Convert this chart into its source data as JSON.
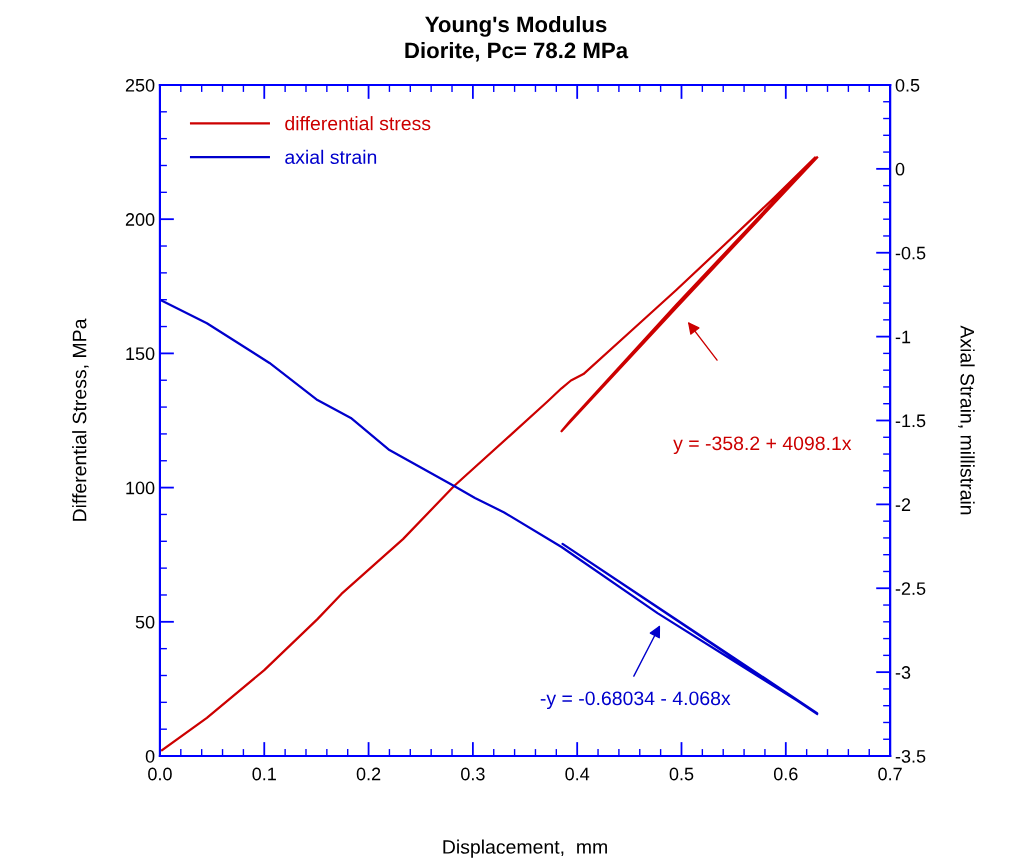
{
  "chart_data": {
    "type": "line",
    "title": "Young's Modulus",
    "subtitle": "Diorite, Pc= 78.2 MPa",
    "xlabel": "Displacement,  mm",
    "ylabel": "Differential Stress, MPa",
    "y2label": "Axial Strain, millistrain",
    "xlim": [
      0,
      0.7
    ],
    "xticks": [
      {
        "value": 0,
        "label": "0.0"
      },
      0.1,
      0.2,
      0.3,
      0.4,
      0.5,
      0.6,
      0.7
    ],
    "ylim": [
      0,
      250
    ],
    "yticks": [
      0,
      50,
      100,
      150,
      200,
      250
    ],
    "y2lim": [
      -3.5,
      0.5
    ],
    "y2ticks": [
      -3.5,
      -3,
      -2.5,
      -2,
      -1.5,
      -1,
      -0.5,
      0,
      0.5
    ],
    "legend": "top left",
    "grid": false,
    "marker": "none",
    "line_style": "solid",
    "series": [
      {
        "name": "differential stress",
        "color": "#cc0000",
        "x": [
          0.002,
          0.045,
          0.1,
          0.151,
          0.174,
          0.233,
          0.282,
          0.335,
          0.371,
          0.385,
          0.394,
          0.406,
          0.449,
          0.495,
          0.541,
          0.587,
          0.628,
          0.495,
          0.394,
          0.385,
          0.495,
          0.63
        ],
        "values": [
          2.2,
          14.2,
          32,
          51,
          60.4,
          80.8,
          100.6,
          119.2,
          131.9,
          137,
          139.9,
          142.3,
          157.4,
          173.6,
          190.4,
          207.3,
          223,
          168.1,
          125.2,
          121,
          167,
          223
        ]
      },
      {
        "name": "axial strain",
        "color": "#0000cc",
        "axis": "y2",
        "x": [
          0,
          0.045,
          0.105,
          0.151,
          0.183,
          0.22,
          0.282,
          0.302,
          0.33,
          0.385,
          0.477,
          0.564,
          0.63,
          0.386,
          0.63
        ],
        "values": [
          -0.78,
          -0.92,
          -1.157,
          -1.378,
          -1.485,
          -1.676,
          -1.89,
          -1.962,
          -2.048,
          -2.254,
          -2.648,
          -2.987,
          -3.244,
          -2.235,
          -3.25
        ]
      }
    ],
    "annotations": [
      "y = -358.2 + 4098.1x",
      "-y = -0.68034 - 4.068x"
    ]
  }
}
